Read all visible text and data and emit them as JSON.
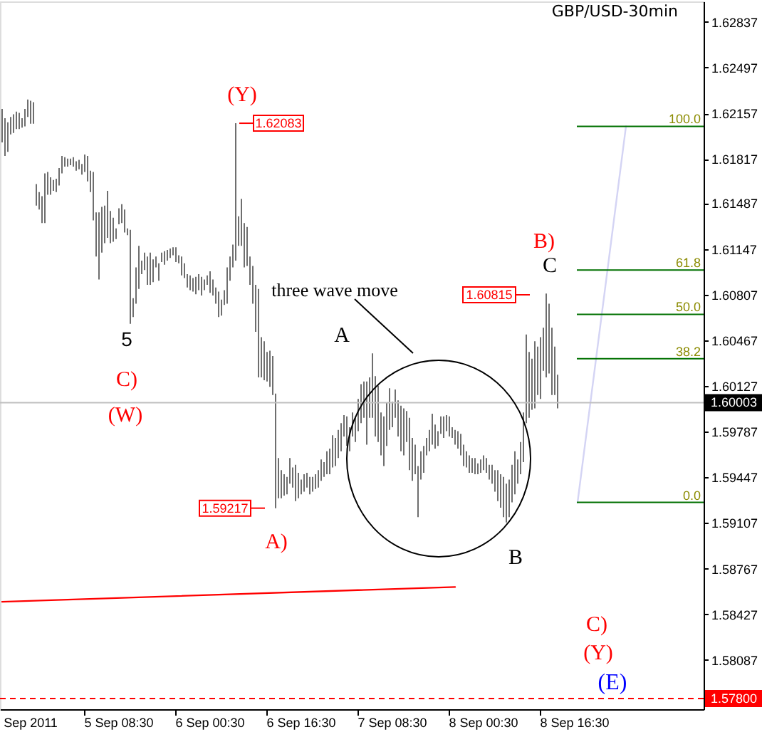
{
  "chart_data": {
    "type": "bar",
    "title": "GBP/USD-30min",
    "categories": [
      null,
      null,
      null,
      null,
      null,
      null,
      null,
      null,
      null,
      null,
      "Sep 2011",
      null,
      null,
      null,
      null,
      null,
      null,
      null,
      null,
      null,
      null,
      null,
      null,
      null,
      null,
      null,
      null,
      null,
      null,
      null,
      null,
      null,
      null,
      null,
      null,
      null,
      null,
      null,
      null,
      null,
      null,
      "5 Sep 08:30",
      null,
      null,
      null,
      null,
      null,
      null,
      null,
      null,
      null,
      null,
      null,
      null,
      null,
      null,
      null,
      null,
      null,
      null,
      null,
      null,
      null,
      null,
      null,
      null,
      null,
      null,
      null,
      null,
      null,
      null,
      null,
      "6 Sep 00:30",
      null,
      null,
      null,
      null,
      null,
      null,
      null,
      null,
      null,
      null,
      null,
      null,
      null,
      null,
      null,
      null,
      null,
      null,
      null,
      null,
      null,
      null,
      null,
      null,
      null,
      null,
      null,
      null,
      null,
      null,
      null,
      "6 Sep 16:30",
      null,
      null,
      null,
      null,
      null,
      null,
      null,
      null,
      null,
      null,
      null,
      null,
      null,
      null,
      null,
      null,
      null,
      null,
      null,
      null,
      null,
      null,
      null,
      null,
      null,
      null,
      null,
      null,
      null,
      null,
      null,
      "7 Sep 08:30",
      null,
      null,
      null,
      null,
      null,
      null,
      null,
      null,
      null,
      null,
      null,
      null,
      null,
      null,
      null,
      null,
      null,
      null,
      null,
      null,
      null,
      null,
      null,
      null,
      null,
      null,
      null,
      null,
      null,
      null,
      null,
      "8 Sep 00:30",
      null,
      null,
      null,
      null,
      null,
      null,
      null,
      null,
      null,
      null,
      null,
      null,
      null,
      null,
      null,
      null,
      null,
      null,
      null,
      null,
      null,
      null,
      null,
      null,
      null,
      null,
      null,
      null,
      null,
      null,
      null,
      "8 Sep 16:30",
      null,
      null,
      null,
      null,
      null,
      null,
      null,
      null,
      null,
      null,
      null,
      null,
      null,
      null,
      null,
      null,
      null,
      null,
      null,
      null,
      null,
      null,
      null,
      null,
      null,
      null,
      null,
      null,
      null,
      null,
      null,
      null,
      null,
      null,
      null,
      null,
      null,
      null,
      null,
      null,
      null,
      null,
      null,
      null,
      null
    ],
    "series": [
      {
        "color": "#6e6e6e",
        "base": [
          1.6194,
          1.6184,
          1.6187,
          1.62,
          1.6201,
          1.6204,
          1.6204,
          1.6205,
          1.6206,
          1.6213,
          1.6208,
          1.6208,
          1.6147,
          1.6144,
          1.6134,
          1.6134,
          1.6155,
          1.6155,
          1.6158,
          1.6157,
          1.6162,
          1.6171,
          1.6176,
          1.6176,
          1.6177,
          1.6176,
          1.6173,
          1.6174,
          1.617,
          1.6172,
          1.6165,
          1.6157,
          1.6136,
          1.6109,
          1.6092,
          1.6112,
          1.6119,
          1.6123,
          1.6119,
          1.612,
          1.6122,
          1.6133,
          1.6134,
          1.6127,
          1.6125,
          1.6059,
          1.6064,
          1.6074,
          1.6085,
          1.6096,
          1.6099,
          1.6088,
          1.6088,
          1.609,
          1.6101,
          1.6091,
          1.6105,
          1.6103,
          1.6106,
          1.6108,
          1.611,
          1.6105,
          1.6104,
          1.6095,
          1.6093,
          1.6086,
          1.6084,
          1.6083,
          1.6081,
          1.6084,
          1.608,
          1.6084,
          1.6088,
          1.6082,
          1.608,
          1.6074,
          1.6064,
          1.6065,
          1.6073,
          1.6074,
          1.6091,
          1.6101,
          1.6106,
          1.6117,
          1.6117,
          1.6101,
          1.6102,
          1.6088,
          1.6074,
          1.6053,
          1.6019,
          1.6019,
          1.6017,
          1.6016,
          1.6012,
          1.6006,
          1.59217,
          1.5929,
          1.5929,
          1.5931,
          1.5932,
          1.594,
          1.5937,
          1.5927,
          1.5929,
          1.5932,
          1.5934,
          1.5937,
          1.5932,
          1.5934,
          1.5936,
          1.5937,
          1.5942,
          1.5945,
          1.5947,
          1.5947,
          1.5952,
          1.5953,
          1.5959,
          1.5964,
          1.5975,
          1.5968,
          1.5964,
          1.5975,
          1.5971,
          1.5979,
          1.5985,
          1.5989,
          1.5969,
          1.5989,
          1.5989,
          1.5975,
          1.5971,
          1.5961,
          1.5953,
          1.5968,
          1.598,
          1.5982,
          1.5989,
          1.5975,
          1.5964,
          1.5961,
          1.5971,
          1.595,
          1.5942,
          1.5947,
          1.5915,
          1.5943,
          1.5948,
          1.5961,
          1.5964,
          1.5969,
          1.5966,
          1.5968,
          1.5977,
          1.5974,
          1.5979,
          1.5975,
          1.5974,
          1.5969,
          1.5966,
          1.5961,
          1.5953,
          1.5952,
          1.5948,
          1.5948,
          1.5947,
          1.5947,
          1.5948,
          1.595,
          1.5948,
          1.5943,
          1.594,
          1.5934,
          1.5927,
          1.5922,
          1.5915,
          1.5911,
          1.5915,
          1.5926,
          1.5932,
          1.594,
          1.5947,
          1.5956,
          1.5985,
          1.5989,
          1.5995,
          1.5996,
          1.6006,
          1.6003,
          1.6024,
          1.6019,
          1.6022,
          1.6006,
          1.6006,
          1.5996,
          null,
          null,
          null,
          null,
          null,
          null,
          null,
          null,
          null,
          null,
          null,
          null,
          null,
          null,
          null,
          null,
          null,
          null,
          null,
          null,
          null,
          null,
          null,
          null,
          null,
          null,
          null,
          null,
          null,
          null,
          null,
          null,
          null,
          null,
          null,
          null,
          null,
          null,
          null,
          null,
          null,
          null,
          null,
          null,
          null,
          null,
          null,
          null,
          null,
          null,
          null
        ],
        "values": [
          0.0025,
          0.0028,
          0.0022,
          0.0013,
          0.0014,
          0.0013,
          0.0012,
          0.0007,
          0.0013,
          0.0013,
          0.0017,
          0.0016,
          0.0016,
          0.0013,
          0.002,
          0.0037,
          0.0017,
          0.0013,
          0.0008,
          0.001,
          0.0013,
          0.0013,
          0.0007,
          0.0006,
          0.0005,
          0.0007,
          0.0007,
          0.0007,
          0.0008,
          0.0013,
          0.0019,
          0.0016,
          0.0036,
          0.0033,
          0.005,
          0.0034,
          0.0028,
          0.0035,
          0.0024,
          0.0018,
          0.0008,
          0.0012,
          0.0014,
          0.0017,
          0.0005,
          0.007,
          0.0014,
          0.0027,
          0.0032,
          0.001,
          0.0013,
          0.0021,
          0.0024,
          0.0017,
          0.0008,
          0.0013,
          0.0007,
          0.001,
          0.0008,
          0.0007,
          0.0006,
          0.0011,
          0.0006,
          0.0014,
          0.0011,
          0.001,
          0.0011,
          0.001,
          0.0013,
          0.0012,
          0.0014,
          0.0008,
          0.0007,
          0.0016,
          0.0012,
          0.0012,
          0.0019,
          0.0012,
          0.0011,
          0.0027,
          0.0018,
          0.0017,
          0.01023,
          0.0022,
          0.0035,
          0.0033,
          0.0029,
          0.0021,
          0.0028,
          0.0035,
          0.0066,
          0.003,
          0.0029,
          0.0022,
          0.0027,
          0.0029,
          0.00853,
          0.003,
          0.0021,
          0.0016,
          0.0013,
          0.0019,
          0.0015,
          0.0027,
          0.0019,
          0.0011,
          0.0013,
          0.0011,
          0.0013,
          0.0011,
          0.0011,
          0.0013,
          0.0016,
          0.0011,
          0.0017,
          0.0019,
          0.0024,
          0.0021,
          0.0021,
          0.0021,
          0.0016,
          0.0022,
          0.0018,
          0.0018,
          0.0019,
          0.0024,
          0.0029,
          0.0027,
          0.0047,
          0.003,
          0.0048,
          0.0045,
          0.0042,
          0.0032,
          0.0037,
          0.0032,
          0.0031,
          0.0019,
          0.0021,
          0.0027,
          0.0034,
          0.0035,
          0.0023,
          0.0039,
          0.0032,
          0.0022,
          0.0038,
          0.0021,
          0.002,
          0.0013,
          0.0016,
          0.0023,
          0.0018,
          0.0011,
          0.0013,
          0.0016,
          0.0012,
          0.0015,
          0.0008,
          0.0011,
          0.0013,
          0.0016,
          0.0016,
          0.0012,
          0.0013,
          0.0011,
          0.0012,
          0.0008,
          0.001,
          0.0011,
          0.0011,
          0.0011,
          0.0014,
          0.0016,
          0.0023,
          0.0025,
          0.003,
          0.0029,
          0.0028,
          0.0028,
          0.0032,
          0.0018,
          0.0024,
          0.0037,
          0.0066,
          0.0049,
          0.0038,
          0.005,
          0.0036,
          0.0046,
          0.0032,
          0.00625,
          0.0052,
          0.005,
          0.0036,
          0.0025,
          null,
          null,
          null,
          null,
          null,
          null,
          null,
          null,
          null,
          null,
          null,
          null,
          null,
          null,
          null,
          null,
          null,
          null,
          null,
          null,
          null,
          null,
          null,
          null,
          null,
          null,
          null,
          null,
          null,
          null,
          null,
          null,
          null,
          null,
          null,
          null,
          null,
          null,
          null,
          null,
          null,
          null,
          null,
          null,
          null,
          null,
          null,
          null,
          null,
          null,
          null
        ]
      },
      {
        "type": "line",
        "color": "#ff0000",
        "values": [
          1.5852,
          null,
          null,
          null,
          null,
          null,
          null,
          null,
          null,
          null,
          null,
          null,
          null,
          null,
          null,
          null,
          null,
          null,
          null,
          null,
          null,
          null,
          null,
          null,
          null,
          null,
          null,
          null,
          null,
          null,
          null,
          null,
          null,
          null,
          null,
          null,
          null,
          null,
          null,
          null,
          null,
          null,
          null,
          null,
          null,
          null,
          null,
          null,
          null,
          null,
          null,
          null,
          null,
          null,
          null,
          null,
          null,
          null,
          null,
          null,
          null,
          null,
          null,
          null,
          null,
          null,
          null,
          null,
          null,
          null,
          null,
          null,
          null,
          null,
          null,
          null,
          null,
          null,
          null,
          null,
          null,
          null,
          null,
          null,
          null,
          null,
          null,
          null,
          null,
          null,
          null,
          null,
          null,
          null,
          null,
          null,
          null,
          null,
          null,
          null,
          null,
          null,
          null,
          null,
          null,
          null,
          null,
          null,
          null,
          null,
          null,
          null,
          null,
          null,
          null,
          null,
          null,
          null,
          null,
          null,
          null,
          null,
          null,
          null,
          null,
          null,
          null,
          null,
          null,
          null,
          null,
          null,
          null,
          null,
          null,
          null,
          null,
          null,
          null,
          null,
          null,
          null,
          null,
          null,
          null,
          null,
          null,
          null,
          null,
          null,
          null,
          null,
          null,
          null,
          null,
          null,
          null,
          null,
          null,
          1.5863,
          null,
          null,
          null,
          null,
          null,
          null,
          null,
          null,
          null,
          null,
          null,
          null,
          null,
          null,
          null,
          null,
          null,
          null,
          null,
          null,
          null,
          null,
          null,
          null,
          null,
          null,
          null,
          null,
          null,
          null,
          null,
          null,
          null,
          null,
          null,
          null,
          null,
          null,
          null,
          null,
          null,
          null,
          null,
          null,
          null,
          null,
          null,
          null,
          null,
          null,
          null,
          null,
          null,
          null,
          null,
          null,
          null,
          null,
          null,
          null,
          null,
          null,
          null,
          null,
          null,
          null,
          null,
          null,
          null,
          null,
          null,
          null,
          null,
          null,
          null,
          null,
          null,
          null,
          null,
          null,
          null,
          null,
          null,
          null,
          null,
          null,
          null
        ]
      },
      {
        "type": "line",
        "color": "#d4d4f4",
        "values": [
          null,
          null,
          null,
          null,
          null,
          null,
          null,
          null,
          null,
          null,
          null,
          null,
          null,
          null,
          null,
          null,
          null,
          null,
          null,
          null,
          null,
          null,
          null,
          null,
          null,
          null,
          null,
          null,
          null,
          null,
          null,
          null,
          null,
          null,
          null,
          null,
          null,
          null,
          null,
          null,
          null,
          null,
          null,
          null,
          null,
          null,
          null,
          null,
          null,
          null,
          null,
          null,
          null,
          null,
          null,
          null,
          null,
          null,
          null,
          null,
          null,
          null,
          null,
          null,
          null,
          null,
          null,
          null,
          null,
          null,
          null,
          null,
          null,
          null,
          null,
          null,
          null,
          null,
          null,
          null,
          null,
          null,
          null,
          null,
          null,
          null,
          null,
          null,
          null,
          null,
          null,
          null,
          null,
          null,
          null,
          null,
          null,
          null,
          null,
          null,
          null,
          null,
          null,
          null,
          null,
          null,
          null,
          null,
          null,
          null,
          null,
          null,
          null,
          null,
          null,
          null,
          null,
          null,
          null,
          null,
          null,
          null,
          null,
          null,
          null,
          null,
          null,
          null,
          null,
          null,
          null,
          null,
          null,
          null,
          null,
          null,
          null,
          null,
          null,
          null,
          null,
          null,
          null,
          null,
          null,
          null,
          null,
          null,
          null,
          null,
          null,
          null,
          null,
          null,
          null,
          null,
          null,
          null,
          null,
          null,
          null,
          null,
          null,
          null,
          null,
          null,
          null,
          null,
          null,
          null,
          null,
          null,
          null,
          null,
          null,
          null,
          null,
          null,
          null,
          null,
          null,
          null,
          null,
          null,
          null,
          null,
          null,
          null,
          null,
          null,
          null,
          null,
          null,
          null,
          null,
          null,
          null,
          null,
          null,
          null,
          null,
          null,
          1.5926,
          null,
          null,
          null,
          null,
          null,
          null,
          null,
          null,
          null,
          null,
          null,
          null,
          null,
          null,
          null,
          null,
          1.6206,
          null,
          null,
          null,
          null,
          null,
          null,
          null,
          null,
          null,
          null,
          null,
          null,
          null,
          null,
          null,
          null,
          null,
          null,
          null,
          null,
          null,
          null,
          null,
          null,
          null,
          null,
          null
        ]
      }
    ],
    "ylim": [
      1.5772,
      1.6299
    ],
    "yticks": [
      1.58087,
      1.58427,
      1.58767,
      1.59107,
      1.59447,
      1.59787,
      1.60127,
      1.60467,
      1.60807,
      1.61147,
      1.61487,
      1.61817,
      1.62157,
      1.62497,
      1.62837
    ],
    "ref_lines": [
      {
        "axis": "y",
        "value": 1.60003,
        "label": "1.60003",
        "color": "#c0c0c0"
      },
      {
        "axis": "y",
        "value": 1.578,
        "label": "1.57800",
        "color": "#ff0000",
        "line_style": "dashed"
      },
      {
        "axis": "y",
        "value": 1.6206,
        "color": "#007000"
      },
      {
        "axis": "y",
        "value": 1.6099,
        "color": "#007000"
      },
      {
        "axis": "y",
        "value": 1.6066,
        "color": "#007000"
      },
      {
        "axis": "y",
        "value": 1.6033,
        "color": "#007000"
      },
      {
        "axis": "y",
        "value": 1.5926,
        "color": "#007000"
      }
    ],
    "annotations": [
      "(Y)",
      "5",
      "C)",
      "(W)",
      "A)",
      "three wave move",
      "A",
      "B)",
      "C",
      "B",
      "C)",
      "(Y)",
      "(E)",
      "1.60815",
      {
        "text": "1.62083",
        "y": 1.62083
      },
      {
        "text": "1.59217",
        "y": 1.59217
      },
      {
        "text": "100.0",
        "y": 1.6206
      },
      {
        "text": "61.8",
        "y": 1.6099
      },
      {
        "text": "50.0",
        "y": 1.6066
      },
      {
        "text": "38.2",
        "y": 1.6033
      },
      {
        "text": "0.0",
        "y": 1.5926
      }
    ]
  }
}
